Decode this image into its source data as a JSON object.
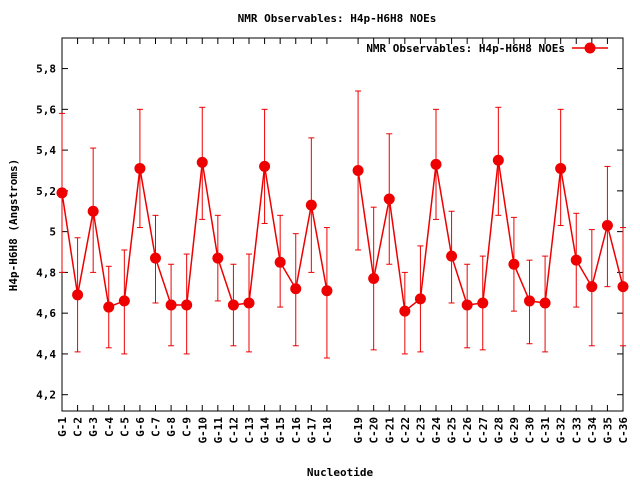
{
  "chart_data": {
    "type": "line",
    "title": "NMR Observables: H4p-H6H8 NOEs",
    "xlabel": "Nucleotide",
    "ylabel": "H4p-H6H8 (Angstroms)",
    "ylim": [
      4.12,
      5.95
    ],
    "yticks": [
      4.2,
      4.4,
      4.6,
      4.8,
      5,
      5.2,
      5.4,
      5.6,
      5.8
    ],
    "ytick_labels": [
      "4,2",
      "4,4",
      "4,6",
      "4,8",
      "5",
      "5,2",
      "5,4",
      "5,6",
      "5,8"
    ],
    "legend": {
      "label": "NMR Observables: H4p-H6H8 NOEs",
      "placement": "top-right"
    },
    "series_color": "#ee0000",
    "categories": [
      "G-1",
      "C-2",
      "G-3",
      "C-4",
      "C-5",
      "G-6",
      "C-7",
      "G-8",
      "C-9",
      "G-10",
      "G-11",
      "C-12",
      "C-13",
      "G-14",
      "G-15",
      "C-16",
      "G-17",
      "C-18",
      "G-19",
      "C-20",
      "G-21",
      "C-22",
      "C-23",
      "G-24",
      "G-25",
      "C-26",
      "C-27",
      "G-28",
      "G-29",
      "C-30",
      "C-31",
      "G-32",
      "C-33",
      "C-34",
      "G-35",
      "C-36"
    ],
    "positions": [
      1,
      2,
      3,
      4,
      5,
      6,
      7,
      8,
      9,
      10,
      11,
      12,
      13,
      14,
      15,
      16,
      17,
      18,
      20,
      21,
      22,
      23,
      24,
      25,
      26,
      27,
      28,
      29,
      30,
      31,
      32,
      33,
      34,
      35,
      36,
      37
    ],
    "values": [
      5.19,
      4.69,
      5.1,
      4.63,
      4.66,
      5.31,
      4.87,
      4.64,
      4.64,
      5.34,
      4.87,
      4.64,
      4.65,
      5.32,
      4.85,
      4.72,
      5.13,
      4.71,
      5.3,
      4.77,
      5.16,
      4.61,
      4.67,
      5.33,
      4.88,
      4.64,
      4.65,
      5.35,
      4.84,
      4.66,
      4.65,
      5.31,
      4.86,
      4.73,
      5.03,
      4.73
    ],
    "err_low": [
      4.8,
      4.41,
      4.8,
      4.43,
      4.4,
      5.02,
      4.65,
      4.44,
      4.4,
      5.06,
      4.66,
      4.44,
      4.41,
      5.04,
      4.63,
      4.44,
      4.8,
      4.38,
      4.91,
      4.42,
      4.84,
      4.4,
      4.41,
      5.06,
      4.65,
      4.43,
      4.42,
      5.08,
      4.61,
      4.45,
      4.41,
      5.03,
      4.63,
      4.44,
      4.73,
      4.44
    ],
    "err_high": [
      5.58,
      4.97,
      5.41,
      4.83,
      4.91,
      5.6,
      5.08,
      4.84,
      4.89,
      5.61,
      5.08,
      4.84,
      4.89,
      5.6,
      5.08,
      4.99,
      5.46,
      5.02,
      5.69,
      5.12,
      5.48,
      4.8,
      4.93,
      5.6,
      5.1,
      4.84,
      4.88,
      5.61,
      5.07,
      4.86,
      4.88,
      5.6,
      5.09,
      5.01,
      5.32,
      5.02
    ]
  }
}
